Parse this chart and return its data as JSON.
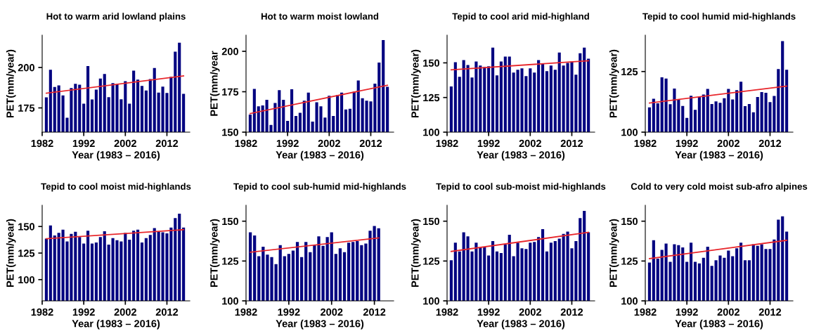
{
  "chart_data": [
    {
      "type": "bar",
      "title": "Hot to warm arid lowland plains",
      "xlabel": "Year (1983 – 2016)",
      "ylabel": "PET(mm/year)",
      "xlim": [
        1982,
        2017.5
      ],
      "ylim": [
        160,
        220
      ],
      "xticks": [
        1982,
        1992,
        2002,
        2012
      ],
      "yticks": [
        175,
        200
      ],
      "grid": false,
      "x": [
        1983,
        1984,
        1985,
        1986,
        1987,
        1988,
        1989,
        1990,
        1991,
        1992,
        1993,
        1994,
        1995,
        1996,
        1997,
        1998,
        1999,
        2000,
        2001,
        2002,
        2003,
        2004,
        2005,
        2006,
        2007,
        2008,
        2009,
        2010,
        2011,
        2012,
        2013,
        2014,
        2015,
        2016
      ],
      "series": [
        {
          "color": "#000080",
          "values": [
            181.5,
            198.6,
            187.9,
            188.9,
            182.7,
            168.9,
            187.3,
            189.9,
            189.3,
            177.6,
            200.9,
            180.2,
            186.3,
            193.1,
            196,
            181.6,
            190.3,
            189.6,
            180.3,
            191.5,
            177.6,
            198,
            192.5,
            188.6,
            185.8,
            192.8,
            199.7,
            184.5,
            188.2,
            184.2,
            194.2,
            209.8,
            215.3,
            183.7
          ]
        },
        {
          "type": "line",
          "color": "#e8262b",
          "x": [
            1983,
            2016
          ],
          "values": [
            184.1,
            194.8
          ]
        }
      ]
    },
    {
      "type": "bar",
      "title": "Hot to warm moist lowland",
      "xlabel": "Year (1983 – 2016)",
      "ylabel": "PET(mm/year",
      "xlim": [
        1982,
        2017.5
      ],
      "ylim": [
        150,
        210
      ],
      "xticks": [
        1982,
        1992,
        2002,
        2012
      ],
      "yticks": [
        150,
        175,
        200
      ],
      "grid": false,
      "x": [
        1983,
        1984,
        1985,
        1986,
        1987,
        1988,
        1989,
        1990,
        1991,
        1992,
        1993,
        1994,
        1995,
        1996,
        1997,
        1998,
        1999,
        2000,
        2001,
        2002,
        2003,
        2004,
        2005,
        2006,
        2007,
        2008,
        2009,
        2010,
        2011,
        2012,
        2013,
        2014,
        2015,
        2016
      ],
      "series": [
        {
          "color": "#000080",
          "values": [
            160.9,
            176.7,
            166,
            166.5,
            170,
            154.5,
            168,
            176,
            170,
            157,
            176.5,
            160,
            162,
            169.5,
            174.5,
            156.5,
            168.5,
            166,
            159,
            172.5,
            160,
            173,
            174.5,
            164,
            164.5,
            175,
            182,
            171,
            169.5,
            169,
            180,
            193,
            207,
            178
          ]
        },
        {
          "type": "line",
          "color": "#e8262b",
          "x": [
            1983,
            2016
          ],
          "values": [
            161.5,
            179
          ]
        }
      ]
    },
    {
      "type": "bar",
      "title": "Tepid to cool arid mid-highland",
      "xlabel": "Year (1983 – 2016)",
      "ylabel": "PET(mm/year)",
      "xlim": [
        1982,
        2017.5
      ],
      "ylim": [
        100,
        170
      ],
      "xticks": [
        1982,
        1992,
        2002,
        2012
      ],
      "yticks": [
        100,
        125,
        150
      ],
      "grid": false,
      "x": [
        1983,
        1984,
        1985,
        1986,
        1987,
        1988,
        1989,
        1990,
        1991,
        1992,
        1993,
        1994,
        1995,
        1996,
        1997,
        1998,
        1999,
        2000,
        2001,
        2002,
        2003,
        2004,
        2005,
        2006,
        2007,
        2008,
        2009,
        2010,
        2011,
        2012,
        2013,
        2014,
        2015,
        2016
      ],
      "series": [
        {
          "color": "#000080",
          "values": [
            133,
            150.5,
            140,
            152,
            148.5,
            139.5,
            151,
            148,
            147,
            147.5,
            161,
            141,
            151,
            154.5,
            154.5,
            143,
            145,
            146,
            140.5,
            146,
            143,
            152,
            149.5,
            144,
            148,
            145,
            157.5,
            148,
            150,
            151,
            141.5,
            157,
            161,
            153
          ]
        },
        {
          "type": "line",
          "color": "#e8262b",
          "x": [
            1983,
            2016
          ],
          "values": [
            145,
            151.5
          ]
        }
      ]
    },
    {
      "type": "bar",
      "title": "Tepid to cool humid mid-highlands",
      "xlabel": "Year (1983 – 2016)",
      "ylabel": "PET(mm/year)",
      "xlim": [
        1982,
        2017.5
      ],
      "ylim": [
        100,
        140
      ],
      "xticks": [
        1982,
        1992,
        2002,
        2012
      ],
      "yticks": [
        100,
        125
      ],
      "grid": false,
      "x": [
        1983,
        1984,
        1985,
        1986,
        1987,
        1988,
        1989,
        1990,
        1991,
        1992,
        1993,
        1994,
        1995,
        1996,
        1997,
        1998,
        1999,
        2000,
        2001,
        2002,
        2003,
        2004,
        2005,
        2006,
        2007,
        2008,
        2009,
        2010,
        2011,
        2012,
        2013,
        2014,
        2015,
        2016
      ],
      "series": [
        {
          "color": "#000080",
          "values": [
            110.2,
            113.8,
            111.9,
            122.6,
            122.1,
            111.5,
            118,
            113.6,
            110.8,
            105.9,
            115,
            109.2,
            114.5,
            115.5,
            117.8,
            111.6,
            112.7,
            112.1,
            114,
            117.8,
            113.5,
            117.3,
            120.8,
            110.7,
            111.6,
            108.2,
            114.5,
            116.5,
            116.2,
            112.4,
            114.9,
            126,
            137.5,
            125.7
          ]
        },
        {
          "type": "line",
          "color": "#e8262b",
          "x": [
            1983,
            2016
          ],
          "values": [
            112,
            119
          ]
        }
      ]
    },
    {
      "type": "bar",
      "title": "Tepid to cool moist mid-highlands",
      "xlabel": "Year (1983 – 2016)",
      "ylabel": "PET(mm/year)",
      "xlim": [
        1982,
        2017.5
      ],
      "ylim": [
        80,
        170
      ],
      "xticks": [
        1982,
        1992,
        2002,
        2012
      ],
      "yticks": [
        100,
        125,
        150
      ],
      "grid": false,
      "x": [
        1983,
        1984,
        1985,
        1986,
        1987,
        1988,
        1989,
        1990,
        1991,
        1992,
        1993,
        1994,
        1995,
        1996,
        1997,
        1998,
        1999,
        2000,
        2001,
        2002,
        2003,
        2004,
        2005,
        2006,
        2007,
        2008,
        2009,
        2010,
        2011,
        2012,
        2013,
        2014,
        2015,
        2016
      ],
      "series": [
        {
          "color": "#000080",
          "values": [
            138.5,
            151,
            141.5,
            144,
            147,
            136,
            143,
            145,
            140,
            134,
            146,
            134,
            135,
            140,
            145.5,
            133,
            139,
            137,
            136,
            144,
            137.5,
            146,
            147,
            135,
            139,
            142,
            148.5,
            145,
            144.5,
            143.5,
            149,
            158,
            162,
            149
          ]
        },
        {
          "type": "line",
          "color": "#e8262b",
          "x": [
            1983,
            2016
          ],
          "values": [
            138.5,
            147
          ]
        }
      ]
    },
    {
      "type": "bar",
      "title": "Tepid to cool sub-humid mid-highlands",
      "xlabel": "Year (1983 – 2016)",
      "ylabel": "PET(mm/year)",
      "xlim": [
        1982,
        2016.5
      ],
      "ylim": [
        100,
        160
      ],
      "xticks": [
        1982,
        1992,
        2002,
        2012
      ],
      "yticks": [
        100,
        125,
        150
      ],
      "grid": false,
      "x": [
        1983,
        1984,
        1985,
        1986,
        1987,
        1988,
        1989,
        1990,
        1991,
        1992,
        1993,
        1994,
        1995,
        1996,
        1997,
        1998,
        1999,
        2000,
        2001,
        2002,
        2003,
        2004,
        2005,
        2006,
        2007,
        2008,
        2009,
        2010,
        2011,
        2012,
        2013
      ],
      "series": [
        {
          "color": "#000080",
          "values": [
            143,
            141,
            128,
            134,
            129,
            127.5,
            123,
            135,
            128,
            129.5,
            131.5,
            137,
            127.5,
            137,
            130.5,
            135,
            140.5,
            134.5,
            140,
            143,
            129.5,
            133,
            130.5,
            136.5,
            137,
            137.5,
            135,
            136,
            144,
            147,
            145.5
          ]
        },
        {
          "type": "line",
          "color": "#e8262b",
          "x": [
            1983,
            2013
          ],
          "values": [
            130.5,
            139.5
          ]
        }
      ]
    },
    {
      "type": "bar",
      "title": "Tepid to cool sub-moist mid-highlands",
      "xlabel": "Year (1983 – 2016)",
      "ylabel": "PET(mm/year)",
      "xlim": [
        1982,
        2017.5
      ],
      "ylim": [
        100,
        160
      ],
      "xticks": [
        1982,
        1992,
        2002,
        2012
      ],
      "yticks": [
        100,
        125,
        150
      ],
      "grid": false,
      "x": [
        1983,
        1984,
        1985,
        1986,
        1987,
        1988,
        1989,
        1990,
        1991,
        1992,
        1993,
        1994,
        1995,
        1996,
        1997,
        1998,
        1999,
        2000,
        2001,
        2002,
        2003,
        2004,
        2005,
        2006,
        2007,
        2008,
        2009,
        2010,
        2011,
        2012,
        2013,
        2014,
        2015,
        2016
      ],
      "series": [
        {
          "color": "#000080",
          "values": [
            125.5,
            136.5,
            131,
            143,
            140.5,
            131,
            136.5,
            133.5,
            134,
            128.5,
            137.5,
            131,
            130,
            135.5,
            141.5,
            128,
            136.5,
            133,
            132.5,
            136.5,
            137,
            140,
            145,
            131,
            136.5,
            137.5,
            139,
            142,
            143.5,
            133,
            137.5,
            152,
            156.5,
            143
          ]
        },
        {
          "type": "line",
          "color": "#e8262b",
          "x": [
            1983,
            2016
          ],
          "values": [
            131,
            143
          ]
        }
      ]
    },
    {
      "type": "bar",
      "title": "Cold to very cold moist sub-afro alpines",
      "xlabel": "Year (1983 – 2016)",
      "ylabel": "PET(mm/year)",
      "xlim": [
        1982,
        2017.5
      ],
      "ylim": [
        100,
        160
      ],
      "xticks": [
        1982,
        1992,
        2002,
        2012
      ],
      "yticks": [
        100,
        125,
        150
      ],
      "grid": false,
      "x": [
        1983,
        1984,
        1985,
        1986,
        1987,
        1988,
        1989,
        1990,
        1991,
        1992,
        1993,
        1994,
        1995,
        1996,
        1997,
        1998,
        1999,
        2000,
        2001,
        2002,
        2003,
        2004,
        2005,
        2006,
        2007,
        2008,
        2009,
        2010,
        2011,
        2012,
        2013,
        2014,
        2015,
        2016
      ],
      "series": [
        {
          "color": "#000080",
          "values": [
            124,
            138,
            126.5,
            132,
            136,
            124.5,
            135.5,
            135,
            133.5,
            124.5,
            136.5,
            124.5,
            123.5,
            127,
            134,
            122,
            125.5,
            128.5,
            127,
            131.5,
            128,
            133,
            136.5,
            125.5,
            125.5,
            135.5,
            134.5,
            135.5,
            132.5,
            132.5,
            138.5,
            151,
            153,
            143.5
          ]
        },
        {
          "type": "line",
          "color": "#e8262b",
          "x": [
            1983,
            2016
          ],
          "values": [
            126.5,
            138
          ]
        }
      ]
    }
  ]
}
